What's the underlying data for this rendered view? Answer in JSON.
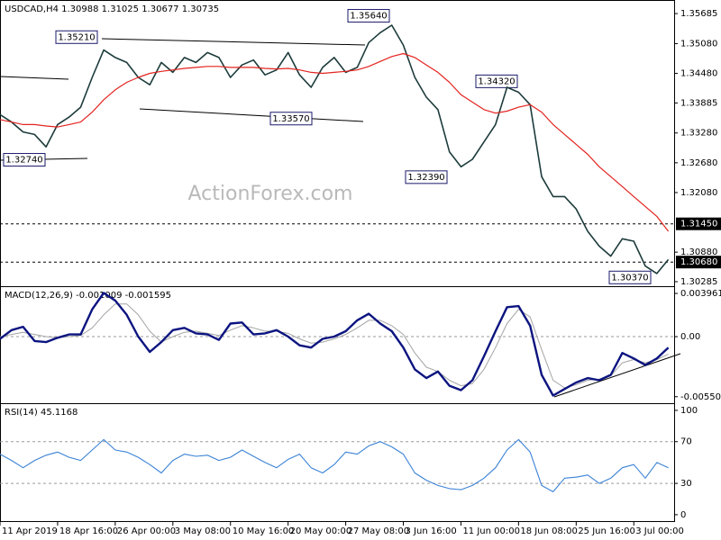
{
  "chart_data": [
    {
      "type": "line",
      "title": "USDCAD,H4  1.30988 1.31025 1.30677 1.30735",
      "watermark": "ActionForex.com",
      "xlim": [
        0,
        117
      ],
      "ylim": [
        1.30194,
        1.3594
      ],
      "yticks": [
        {
          "value": 1.35685,
          "label": "1.35685"
        },
        {
          "value": 1.3508,
          "label": "1.35080"
        },
        {
          "value": 1.3448,
          "label": "1.34480"
        },
        {
          "value": 1.33885,
          "label": "1.33885"
        },
        {
          "value": 1.3328,
          "label": "1.33280"
        },
        {
          "value": 1.3268,
          "label": "1.32680"
        },
        {
          "value": 1.3208,
          "label": "1.32080"
        },
        {
          "value": 1.3088,
          "label": "1.30880"
        },
        {
          "value": 1.30285,
          "label": "1.30285"
        }
      ],
      "levels": [
        {
          "value": 1.3145,
          "label": "1.31450"
        },
        {
          "value": 1.3068,
          "label": "1.30680"
        }
      ],
      "annotations": [
        {
          "value": 1.3521,
          "label": "1.35210"
        },
        {
          "value": 1.3564,
          "label": "1.35640"
        },
        {
          "value": 1.3274,
          "label": "1.32740"
        },
        {
          "value": 1.3357,
          "label": "1.33570"
        },
        {
          "value": 1.3239,
          "label": "1.32390"
        },
        {
          "value": 1.3432,
          "label": "1.34320"
        },
        {
          "value": 1.3037,
          "label": "1.30370"
        }
      ],
      "x": [
        0,
        2,
        4,
        6,
        8,
        10,
        12,
        14,
        16,
        18,
        20,
        22,
        24,
        26,
        28,
        30,
        32,
        34,
        36,
        38,
        40,
        42,
        44,
        46,
        48,
        50,
        52,
        54,
        56,
        58,
        60,
        62,
        64,
        66,
        68,
        70,
        72,
        74,
        76,
        78,
        80,
        82,
        84,
        86,
        88,
        90,
        92,
        94,
        96,
        98,
        100,
        102,
        104,
        106,
        108,
        110,
        112,
        114,
        116
      ],
      "series": [
        {
          "name": "USDCAD",
          "color": "#1d3b3b",
          "width": 1.6,
          "values": [
            1.3365,
            1.335,
            1.333,
            1.3325,
            1.33,
            1.3345,
            1.336,
            1.338,
            1.344,
            1.3495,
            1.348,
            1.347,
            1.344,
            1.3425,
            1.347,
            1.345,
            1.348,
            1.347,
            1.349,
            1.348,
            1.344,
            1.3465,
            1.3475,
            1.3445,
            1.3455,
            1.349,
            1.3445,
            1.342,
            1.346,
            1.348,
            1.345,
            1.346,
            1.351,
            1.353,
            1.3545,
            1.3505,
            1.344,
            1.34,
            1.3375,
            1.329,
            1.326,
            1.3275,
            1.331,
            1.3345,
            1.342,
            1.341,
            1.3385,
            1.324,
            1.32,
            1.32,
            1.3175,
            1.313,
            1.31,
            1.308,
            1.3115,
            1.311,
            1.306,
            1.3045,
            1.3073
          ]
        },
        {
          "name": "MA",
          "color": "#e3231f",
          "width": 1.2,
          "values": [
            1.3355,
            1.335,
            1.3345,
            1.3345,
            1.3342,
            1.334,
            1.3345,
            1.335,
            1.337,
            1.3395,
            1.3415,
            1.343,
            1.344,
            1.3448,
            1.3452,
            1.3455,
            1.3458,
            1.346,
            1.3462,
            1.3462,
            1.346,
            1.346,
            1.346,
            1.3458,
            1.3457,
            1.3458,
            1.3455,
            1.345,
            1.3448,
            1.345,
            1.3452,
            1.3455,
            1.3462,
            1.3472,
            1.3482,
            1.3488,
            1.348,
            1.3465,
            1.345,
            1.343,
            1.3405,
            1.339,
            1.3375,
            1.3368,
            1.3372,
            1.338,
            1.3385,
            1.337,
            1.3345,
            1.3325,
            1.3305,
            1.3285,
            1.326,
            1.324,
            1.322,
            1.32,
            1.318,
            1.316,
            1.313
          ]
        }
      ]
    },
    {
      "type": "line",
      "title": "MACD(12,26,9) -0.001009 -0.001595",
      "xlim": [
        0,
        117
      ],
      "ylim": [
        -0.0061,
        0.00454
      ],
      "yticks": [
        0.003961,
        {
          "value": 0,
          "label": "0.00"
        },
        -0.005503
      ],
      "x": [
        0,
        2,
        4,
        6,
        8,
        10,
        12,
        14,
        16,
        18,
        20,
        22,
        24,
        26,
        28,
        30,
        32,
        34,
        36,
        38,
        40,
        42,
        44,
        46,
        48,
        50,
        52,
        54,
        56,
        58,
        60,
        62,
        64,
        66,
        68,
        70,
        72,
        74,
        76,
        78,
        80,
        82,
        84,
        86,
        88,
        90,
        92,
        94,
        96,
        98,
        100,
        102,
        104,
        106,
        108,
        110,
        112,
        114,
        116
      ],
      "series": [
        {
          "name": "Signal",
          "color": "#a4a4a4",
          "width": 1,
          "values": [
            0,
            0.0002,
            0.0004,
            0.0002,
            0,
            -0.0001,
            0,
            0.0001,
            0.0008,
            0.002,
            0.003,
            0.003,
            0.002,
            0.0005,
            -0.0005,
            0,
            0.0004,
            0.0005,
            0.0003,
            0.0001,
            0.0006,
            0.001,
            0.0008,
            0.0005,
            0.0005,
            0.0003,
            -0.0002,
            -0.0006,
            -0.0005,
            -0.0002,
            0.0002,
            0.0008,
            0.0015,
            0.0015,
            0.001,
            0.0002,
            -0.0015,
            -0.0028,
            -0.0032,
            -0.004,
            -0.0045,
            -0.0043,
            -0.003,
            -0.001,
            0.0012,
            0.0025,
            0.0018,
            -0.0012,
            -0.004,
            -0.0047,
            -0.0044,
            -0.004,
            -0.0039,
            -0.0036,
            -0.0024,
            -0.0021,
            -0.0024,
            -0.0021,
            -0.0016
          ]
        },
        {
          "name": "MACD",
          "color": "#0c1480",
          "width": 2.4,
          "values": [
            -0.0002,
            0.0006,
            0.0009,
            -0.0004,
            -0.0005,
            -0.0001,
            0.0002,
            0.0002,
            0.0025,
            0.004,
            0.0033,
            0.002,
            0,
            -0.0014,
            -0.0005,
            0.0006,
            0.0008,
            0.0003,
            0.0002,
            -0.0003,
            0.0012,
            0.0013,
            0.0002,
            0.0003,
            0.0006,
            0,
            -0.0008,
            -0.001,
            -0.0002,
            0,
            0.0005,
            0.0015,
            0.0021,
            0.0012,
            0.0005,
            -0.001,
            -0.003,
            -0.0038,
            -0.0032,
            -0.0045,
            -0.0049,
            -0.004,
            -0.0018,
            0.0005,
            0.0027,
            0.0028,
            0.001,
            -0.0035,
            -0.0054,
            -0.0048,
            -0.0042,
            -0.0038,
            -0.004,
            -0.0035,
            -0.0015,
            -0.002,
            -0.0026,
            -0.002,
            -0.001
          ]
        }
      ]
    },
    {
      "type": "line",
      "title": "RSI(14) 45.1168",
      "xlim": [
        0,
        117
      ],
      "ylim": [
        -7,
        106
      ],
      "yticks": [
        100,
        70,
        30,
        0
      ],
      "xticks": [
        {
          "value": 0,
          "label": "11 Apr 2019"
        },
        {
          "value": 10,
          "label": "18 Apr 16:00"
        },
        {
          "value": 20,
          "label": "26 Apr 00:00"
        },
        {
          "value": 30,
          "label": "3 May 08:00"
        },
        {
          "value": 40,
          "label": "10 May 16:00"
        },
        {
          "value": 50,
          "label": "20 May 00:00"
        },
        {
          "value": 60,
          "label": "27 May 08:00"
        },
        {
          "value": 70,
          "label": "3 Jun 16:00"
        },
        {
          "value": 80,
          "label": "11 Jun 00:00"
        },
        {
          "value": 90,
          "label": "18 Jun 08:00"
        },
        {
          "value": 100,
          "label": "25 Jun 16:00"
        },
        {
          "value": 110,
          "label": "3 Jul 00:00"
        }
      ],
      "x": [
        0,
        2,
        4,
        6,
        8,
        10,
        12,
        14,
        16,
        18,
        20,
        22,
        24,
        26,
        28,
        30,
        32,
        34,
        36,
        38,
        40,
        42,
        44,
        46,
        48,
        50,
        52,
        54,
        56,
        58,
        60,
        62,
        64,
        66,
        68,
        70,
        72,
        74,
        76,
        78,
        80,
        82,
        84,
        86,
        88,
        90,
        92,
        94,
        96,
        98,
        100,
        102,
        104,
        106,
        108,
        110,
        112,
        114,
        116
      ],
      "series": [
        {
          "name": "RSI",
          "color": "#3b82d6",
          "width": 1.1,
          "values": [
            58,
            52,
            45,
            52,
            57,
            60,
            55,
            52,
            62,
            72,
            62,
            60,
            55,
            48,
            40,
            52,
            58,
            56,
            57,
            52,
            55,
            62,
            56,
            50,
            45,
            53,
            58,
            45,
            40,
            48,
            60,
            58,
            66,
            70,
            65,
            58,
            40,
            33,
            28,
            25,
            24,
            28,
            35,
            45,
            62,
            72,
            60,
            28,
            22,
            35,
            36,
            38,
            30,
            35,
            45,
            48,
            35,
            50,
            45
          ]
        }
      ]
    }
  ]
}
